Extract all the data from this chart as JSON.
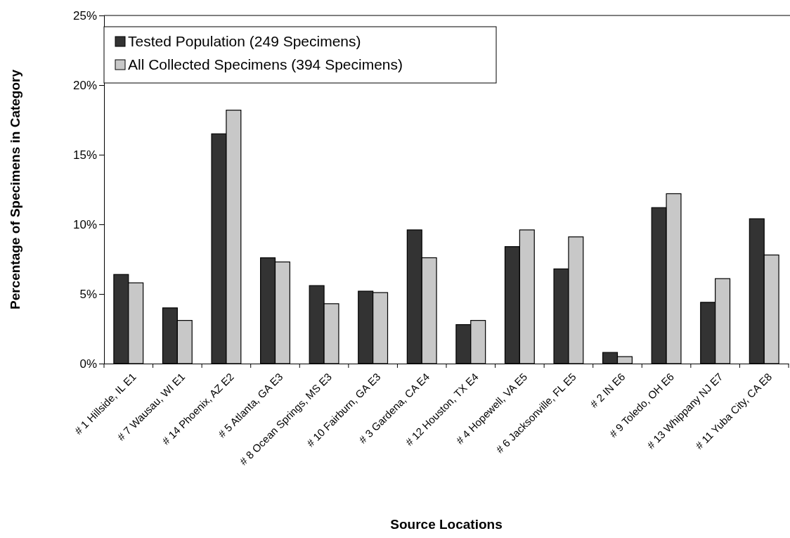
{
  "chart_data": {
    "type": "bar",
    "xlabel": "Source Locations",
    "ylabel": "Percentage of Specimens in Category",
    "categories": [
      "# 1 Hillside, IL E1",
      "# 7 Wausau, WI E1",
      "# 14 Phoenix, AZ E2",
      "# 5 Atlanta, GA E3",
      "# 8 Ocean Springs, MS E3",
      "# 10 Fairburn, GA E3",
      "# 3 Gardena, CA E4",
      "# 12 Houston, TX E4",
      "# 4 Hopewell, VA E5",
      "# 6 Jacksonville, FL E5",
      "# 2 IN E6",
      "# 9 Toledo, OH E6",
      "# 13 Whippany NJ E7",
      "# 11 Yuba City, CA E8"
    ],
    "series": [
      {
        "name": "Tested Population (249 Specimens)",
        "color": "#333333",
        "values": [
          6.4,
          4.0,
          16.5,
          7.6,
          5.6,
          5.2,
          9.6,
          2.8,
          8.4,
          6.8,
          0.8,
          11.2,
          4.4,
          10.4
        ]
      },
      {
        "name": "All Collected Specimens (394 Specimens)",
        "color": "#c8c8c8",
        "values": [
          5.8,
          3.1,
          18.2,
          7.3,
          4.3,
          5.1,
          7.6,
          3.1,
          9.6,
          9.1,
          0.5,
          12.2,
          6.1,
          7.8
        ]
      }
    ],
    "ylim": [
      0,
      25
    ],
    "yticks": [
      {
        "value": 0,
        "label": "0%"
      },
      {
        "value": 5,
        "label": "5%"
      },
      {
        "value": 10,
        "label": "10%"
      },
      {
        "value": 15,
        "label": "15%"
      },
      {
        "value": 20,
        "label": "20%"
      },
      {
        "value": 25,
        "label": "25%"
      }
    ],
    "legend": "top left"
  }
}
